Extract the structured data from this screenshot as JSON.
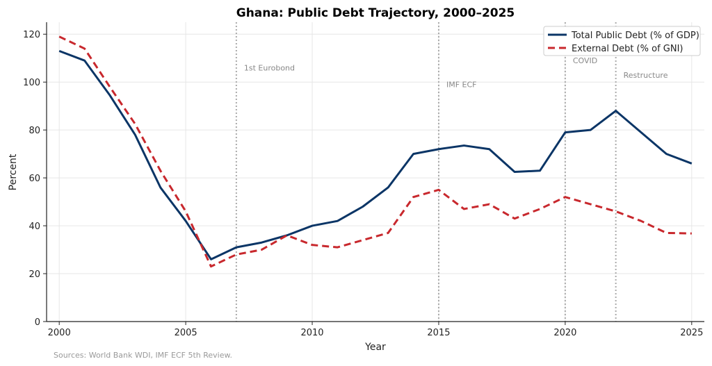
{
  "chart_data": {
    "type": "line",
    "title": "Ghana: Public Debt Trajectory, 2000–2025",
    "xlabel": "Year",
    "ylabel": "Percent",
    "xlim": [
      1999.5,
      2025.5
    ],
    "ylim": [
      0,
      125
    ],
    "xticks": [
      2000,
      2005,
      2010,
      2015,
      2020,
      2025
    ],
    "yticks": [
      0,
      20,
      40,
      60,
      80,
      100,
      120
    ],
    "grid": true,
    "legend_position": "top-right",
    "x": [
      2000,
      2001,
      2002,
      2003,
      2004,
      2005,
      2006,
      2007,
      2008,
      2009,
      2010,
      2011,
      2012,
      2013,
      2014,
      2015,
      2016,
      2017,
      2018,
      2019,
      2020,
      2021,
      2022,
      2023,
      2024,
      2025
    ],
    "series": [
      {
        "name": "Total Public Debt (% of GDP)",
        "color": "#0b3566",
        "style": "solid",
        "values": [
          113,
          109,
          94.5,
          78,
          56,
          42,
          26,
          31,
          33,
          36,
          40,
          42,
          48,
          56,
          70,
          72,
          73.5,
          72,
          62.5,
          63,
          79,
          80,
          88,
          79,
          70,
          66
        ]
      },
      {
        "name": "External Debt (% of GNI)",
        "color": "#c8282d",
        "style": "dashed",
        "values": [
          119,
          114,
          98,
          82.5,
          63,
          46,
          23,
          28,
          30,
          36,
          32,
          31,
          34,
          37,
          52,
          55,
          47,
          49,
          43,
          47,
          52,
          49,
          46,
          42,
          37,
          36.8
        ]
      }
    ],
    "annotations": [
      {
        "x": 2007,
        "label": "1st Eurobond",
        "y": 106
      },
      {
        "x": 2015,
        "label": "IMF ECF",
        "y": 99
      },
      {
        "x": 2020,
        "label": "COVID",
        "y": 109
      },
      {
        "x": 2022,
        "label": "Restructure",
        "y": 103
      }
    ],
    "source": "Sources: World Bank WDI, IMF ECF 5th Review."
  }
}
